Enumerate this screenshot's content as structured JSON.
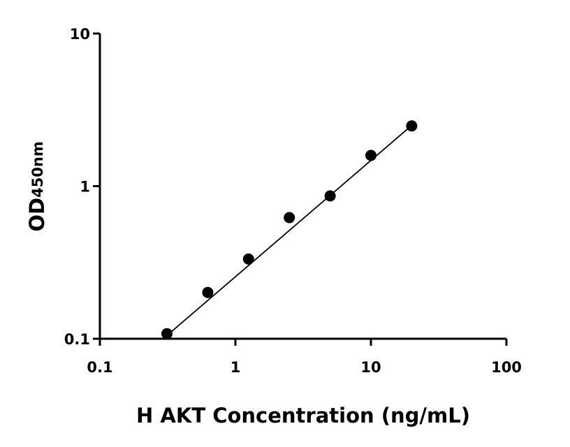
{
  "chart_data": {
    "type": "scatter",
    "x_label": "H AKT Concentration (ng/mL)",
    "y_label": "OD",
    "y_label_sub": "450nm",
    "x": [
      0.3125,
      0.625,
      1.25,
      2.5,
      5,
      10,
      20
    ],
    "values": [
      0.108,
      0.201,
      0.333,
      0.622,
      0.863,
      1.59,
      2.48
    ],
    "color": "#000000",
    "fit": {
      "x": [
        0.3125,
        20
      ],
      "values": [
        0.105,
        2.5
      ]
    },
    "xlim": [
      0.1,
      100
    ],
    "xticks": [
      0.1,
      1,
      10,
      100
    ],
    "ylim": [
      0.1,
      10
    ],
    "yticks": [
      0.1,
      1,
      10
    ],
    "log_x": true,
    "log_y": true,
    "grid": false
  }
}
